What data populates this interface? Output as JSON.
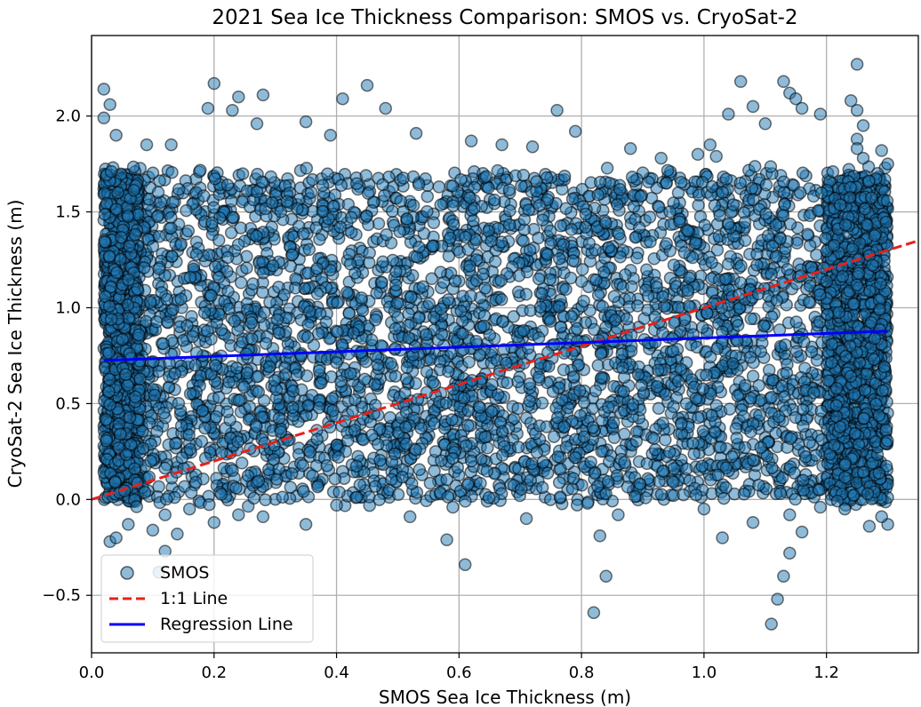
{
  "chart_data": {
    "type": "scatter",
    "title": "2021 Sea Ice Thickness Comparison: SMOS vs. CryoSat-2",
    "xlabel": "SMOS Sea Ice Thickness (m)",
    "ylabel": "CryoSat-2 Sea Ice Thickness (m)",
    "xlim": [
      0.0,
      1.35
    ],
    "ylim": [
      -0.8,
      2.42
    ],
    "xticks": [
      "0.0",
      "0.2",
      "0.4",
      "0.6",
      "0.8",
      "1.0",
      "1.2"
    ],
    "yticks": [
      "−0.5",
      "0.0",
      "0.5",
      "1.0",
      "1.5",
      "2.0"
    ],
    "xtick_values": [
      0.0,
      0.2,
      0.4,
      0.6,
      0.8,
      1.0,
      1.2
    ],
    "ytick_values": [
      -0.5,
      0.0,
      0.5,
      1.0,
      1.5,
      2.0
    ],
    "grid": true,
    "legend_position": "lower-left",
    "series": [
      {
        "name": "SMOS",
        "kind": "points",
        "marker_face": "#1f77b4",
        "marker_edge": "#000000",
        "alpha": 0.5,
        "distribution": {
          "x_range": [
            0.02,
            1.3
          ],
          "y_range": [
            0.0,
            1.7
          ],
          "dense_x_bands": [
            [
              0.02,
              0.08
            ],
            [
              1.2,
              1.3
            ]
          ],
          "approx_count": 6000
        },
        "points": [
          [
            0.02,
            2.14
          ],
          [
            0.03,
            2.06
          ],
          [
            0.02,
            1.99
          ],
          [
            0.04,
            1.9
          ],
          [
            0.2,
            2.17
          ],
          [
            0.24,
            2.1
          ],
          [
            0.28,
            2.11
          ],
          [
            0.45,
            2.16
          ],
          [
            0.41,
            2.09
          ],
          [
            0.48,
            2.04
          ],
          [
            0.19,
            2.04
          ],
          [
            0.23,
            2.03
          ],
          [
            0.27,
            1.96
          ],
          [
            0.09,
            1.85
          ],
          [
            0.13,
            1.85
          ],
          [
            0.35,
            1.97
          ],
          [
            0.39,
            1.9
          ],
          [
            0.53,
            1.91
          ],
          [
            0.76,
            2.03
          ],
          [
            0.79,
            1.92
          ],
          [
            0.67,
            1.85
          ],
          [
            0.62,
            1.87
          ],
          [
            0.72,
            1.84
          ],
          [
            1.06,
            2.18
          ],
          [
            1.08,
            2.05
          ],
          [
            1.04,
            2.01
          ],
          [
            1.1,
            1.96
          ],
          [
            1.13,
            2.18
          ],
          [
            1.14,
            2.12
          ],
          [
            1.15,
            2.09
          ],
          [
            1.16,
            2.04
          ],
          [
            1.19,
            2.01
          ],
          [
            1.25,
            2.27
          ],
          [
            1.24,
            2.08
          ],
          [
            1.25,
            2.03
          ],
          [
            1.26,
            1.95
          ],
          [
            1.25,
            1.88
          ],
          [
            1.25,
            1.83
          ],
          [
            1.26,
            1.78
          ],
          [
            1.29,
            1.82
          ],
          [
            1.3,
            1.75
          ],
          [
            1.01,
            1.85
          ],
          [
            1.02,
            1.79
          ],
          [
            0.93,
            1.78
          ],
          [
            0.88,
            1.83
          ],
          [
            0.99,
            1.8
          ],
          [
            0.03,
            -0.22
          ],
          [
            0.04,
            -0.2
          ],
          [
            0.06,
            -0.13
          ],
          [
            0.1,
            -0.16
          ],
          [
            0.11,
            -0.38
          ],
          [
            0.12,
            -0.27
          ],
          [
            0.12,
            -0.08
          ],
          [
            0.14,
            -0.18
          ],
          [
            0.2,
            -0.12
          ],
          [
            0.16,
            -0.05
          ],
          [
            0.24,
            -0.08
          ],
          [
            0.28,
            -0.09
          ],
          [
            0.35,
            -0.13
          ],
          [
            0.4,
            -0.03
          ],
          [
            0.58,
            -0.21
          ],
          [
            0.61,
            -0.34
          ],
          [
            0.52,
            -0.09
          ],
          [
            0.59,
            -0.04
          ],
          [
            0.71,
            -0.1
          ],
          [
            0.82,
            -0.59
          ],
          [
            0.83,
            -0.19
          ],
          [
            0.84,
            -0.4
          ],
          [
            0.81,
            -0.02
          ],
          [
            0.86,
            -0.08
          ],
          [
            1.03,
            -0.2
          ],
          [
            1.0,
            -0.05
          ],
          [
            1.08,
            -0.12
          ],
          [
            1.11,
            -0.65
          ],
          [
            1.12,
            -0.52
          ],
          [
            1.13,
            -0.4
          ],
          [
            1.14,
            -0.28
          ],
          [
            1.14,
            -0.08
          ],
          [
            1.16,
            -0.17
          ],
          [
            1.27,
            -0.14
          ],
          [
            1.3,
            -0.13
          ],
          [
            1.29,
            -0.09
          ],
          [
            1.23,
            -0.05
          ],
          [
            1.19,
            -0.04
          ]
        ]
      },
      {
        "name": "1:1 Line",
        "kind": "line",
        "style": "dashed",
        "color": "#e8201a",
        "x": [
          0.0,
          1.35
        ],
        "y": [
          0.0,
          1.35
        ]
      },
      {
        "name": "Regression Line",
        "kind": "line",
        "style": "solid",
        "color": "#0000ff",
        "x": [
          0.02,
          1.3
        ],
        "y": [
          0.725,
          0.878
        ]
      }
    ]
  }
}
